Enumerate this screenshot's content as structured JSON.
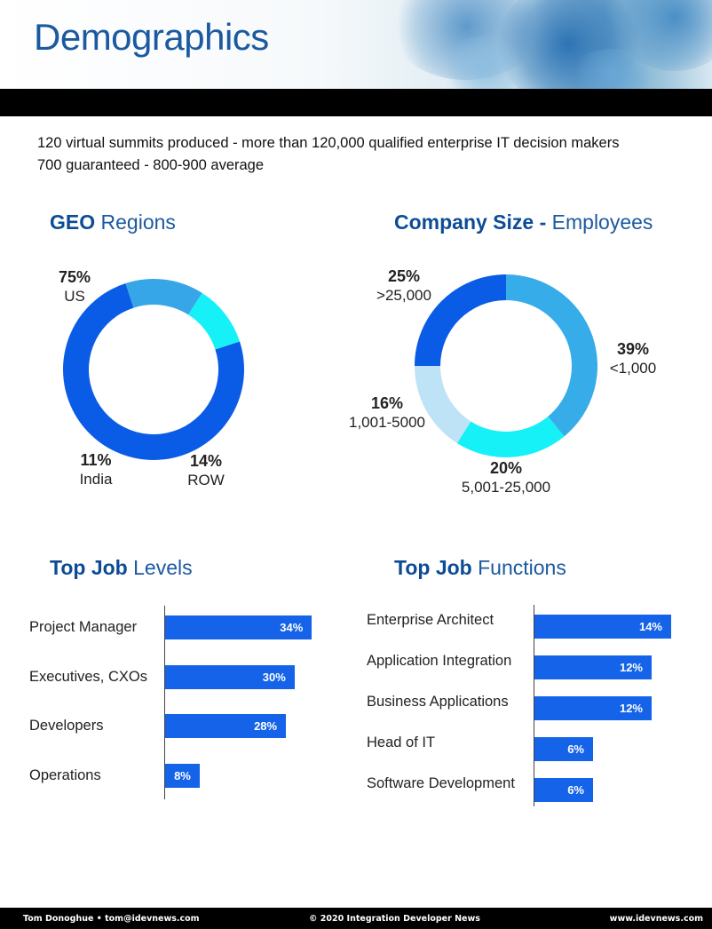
{
  "header": {
    "title": "Demographics"
  },
  "intro": {
    "line1": "120 virtual summits produced - more than 120,000 qualified enterprise IT decision makers",
    "line2": "700 guaranteed - 800-900 average"
  },
  "sections": {
    "geo": {
      "title_bold": "GEO",
      "title_rest": " Regions"
    },
    "company": {
      "title_bold": "Company Size -",
      "title_rest": " Employees"
    },
    "job_levels": {
      "title_bold": "Top Job",
      "title_rest": " Levels"
    },
    "job_functions": {
      "title_bold": "Top Job",
      "title_rest": " Functions"
    }
  },
  "geo_labels": [
    {
      "pct": "75%",
      "name": "US"
    },
    {
      "pct": "14%",
      "name": "ROW"
    },
    {
      "pct": "11%",
      "name": "India"
    }
  ],
  "company_labels": [
    {
      "pct": "39%",
      "name": "<1,000"
    },
    {
      "pct": "20%",
      "name": "5,001-25,000"
    },
    {
      "pct": "16%",
      "name": "1,001-5000"
    },
    {
      "pct": "25%",
      "name": ">25,000"
    }
  ],
  "job_levels_labels": [
    {
      "name": "Project Manager",
      "pct": "34%"
    },
    {
      "name": "Executives, CXOs",
      "pct": "30%"
    },
    {
      "name": "Developers",
      "pct": "28%"
    },
    {
      "name": "Operations",
      "pct": "8%"
    }
  ],
  "job_functions_labels": [
    {
      "name": "Enterprise Architect",
      "pct": "14%"
    },
    {
      "name": "Application Integration",
      "pct": "12%"
    },
    {
      "name": "Business Applications",
      "pct": "12%"
    },
    {
      "name": "Head of IT",
      "pct": "6%"
    },
    {
      "name": "Software Development",
      "pct": "6%"
    }
  ],
  "chart_data": [
    {
      "type": "pie",
      "title": "GEO Regions",
      "categories": [
        "US",
        "ROW",
        "India"
      ],
      "values": [
        75,
        14,
        11
      ],
      "colors": [
        "#0a5ce6",
        "#36a6e8",
        "#16f1f8"
      ]
    },
    {
      "type": "pie",
      "title": "Company Size - Employees",
      "categories": [
        "<1,000",
        "5,001-25,000",
        "1,001-5000",
        ">25,000"
      ],
      "values": [
        39,
        20,
        16,
        25
      ],
      "colors": [
        "#36ace9",
        "#16f1f8",
        "#bee3f6",
        "#0a5ce6"
      ]
    },
    {
      "type": "bar",
      "title": "Top Job Levels",
      "categories": [
        "Project Manager",
        "Executives, CXOs",
        "Developers",
        "Operations"
      ],
      "values": [
        34,
        30,
        28,
        8
      ],
      "xlim": [
        0,
        36
      ]
    },
    {
      "type": "bar",
      "title": "Top Job Functions",
      "categories": [
        "Enterprise Architect",
        "Application Integration",
        "Business Applications",
        "Head of IT",
        "Software Development"
      ],
      "values": [
        14,
        12,
        12,
        6,
        6
      ],
      "xlim": [
        0,
        15
      ]
    }
  ],
  "footer": {
    "left": "Tom Donoghue • tom@idevnews.com",
    "center": "© 2020 Integration Developer News",
    "right": "www.idevnews.com"
  }
}
